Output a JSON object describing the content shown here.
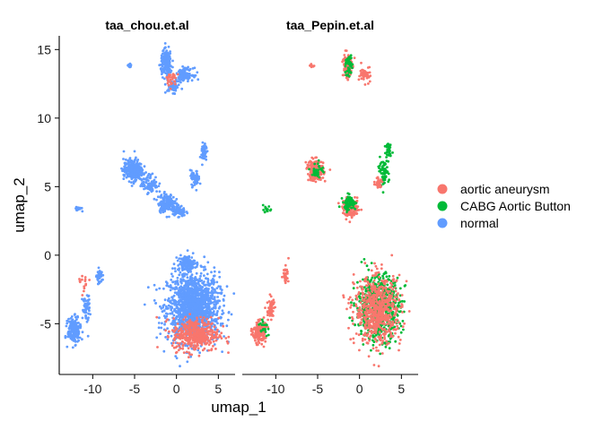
{
  "chart_data": {
    "type": "scatter",
    "xlabel": "umap_1",
    "ylabel": "umap_2",
    "xlim": [
      -14,
      7
    ],
    "ylim": [
      -8.7,
      16
    ],
    "x_ticks": [
      -10,
      -5,
      0,
      5
    ],
    "x_tick_labels": [
      "-10",
      "-5",
      "0",
      "5"
    ],
    "y_ticks": [
      -5,
      0,
      5,
      10,
      15
    ],
    "y_tick_labels": [
      "-5",
      "0",
      "5",
      "10",
      "15"
    ],
    "grid": false,
    "legend_position": "right",
    "legend": [
      {
        "label": "aortic aneurysm",
        "color": "#F8766D"
      },
      {
        "label": "CABG Aortic Button",
        "color": "#00BA38"
      },
      {
        "label": "normal",
        "color": "#619CFF"
      }
    ],
    "facets": [
      {
        "title": "taa_chou.et.al",
        "clusters": [
          {
            "label": "normal",
            "cx": 2.0,
            "cy": -3.8,
            "sx": 2.8,
            "sy": 2.3,
            "n": 1500
          },
          {
            "label": "aortic aneurysm",
            "cx": 2.3,
            "cy": -5.8,
            "sx": 2.5,
            "sy": 1.1,
            "n": 400
          },
          {
            "label": "normal",
            "cx": 1.2,
            "cy": -0.6,
            "sx": 0.9,
            "sy": 0.5,
            "n": 120
          },
          {
            "label": "normal",
            "cx": -5.2,
            "cy": 6.2,
            "sx": 1.0,
            "sy": 0.7,
            "n": 320
          },
          {
            "label": "normal",
            "cx": -3.2,
            "cy": 5.2,
            "sx": 0.9,
            "sy": 0.6,
            "n": 90
          },
          {
            "label": "normal",
            "cx": -1.2,
            "cy": 3.8,
            "sx": 0.9,
            "sy": 0.6,
            "n": 160
          },
          {
            "label": "normal",
            "cx": 0.3,
            "cy": 3.2,
            "sx": 0.7,
            "sy": 0.4,
            "n": 80
          },
          {
            "label": "normal",
            "cx": 2.2,
            "cy": 5.6,
            "sx": 0.5,
            "sy": 0.5,
            "n": 60
          },
          {
            "label": "normal",
            "cx": 3.3,
            "cy": 7.5,
            "sx": 0.3,
            "sy": 0.7,
            "n": 50
          },
          {
            "label": "normal",
            "cx": -1.2,
            "cy": 14.0,
            "sx": 0.6,
            "sy": 0.8,
            "n": 200
          },
          {
            "label": "normal",
            "cx": 1.0,
            "cy": 13.2,
            "sx": 0.9,
            "sy": 0.4,
            "n": 120
          },
          {
            "label": "normal",
            "cx": -0.4,
            "cy": 12.3,
            "sx": 0.7,
            "sy": 0.4,
            "n": 70
          },
          {
            "label": "aortic aneurysm",
            "cx": -0.6,
            "cy": 12.8,
            "sx": 0.8,
            "sy": 0.5,
            "n": 30
          },
          {
            "label": "normal",
            "cx": -5.6,
            "cy": 13.8,
            "sx": 0.15,
            "sy": 0.15,
            "n": 20
          },
          {
            "label": "normal",
            "cx": -11.8,
            "cy": 3.4,
            "sx": 0.4,
            "sy": 0.12,
            "n": 25
          },
          {
            "label": "normal",
            "cx": -12.2,
            "cy": -5.5,
            "sx": 0.7,
            "sy": 0.8,
            "n": 220
          },
          {
            "label": "normal",
            "cx": -10.8,
            "cy": -3.8,
            "sx": 0.4,
            "sy": 0.8,
            "n": 60
          },
          {
            "label": "normal",
            "cx": -9.2,
            "cy": -1.6,
            "sx": 0.3,
            "sy": 0.5,
            "n": 40
          },
          {
            "label": "aortic aneurysm",
            "cx": -11.0,
            "cy": -2.2,
            "sx": 0.5,
            "sy": 0.6,
            "n": 15
          }
        ]
      },
      {
        "title": "taa_Pepin.et.al",
        "clusters": [
          {
            "label": "CABG Aortic Button",
            "cx": 2.2,
            "cy": -3.8,
            "sx": 2.4,
            "sy": 2.1,
            "n": 650
          },
          {
            "label": "aortic aneurysm",
            "cx": 2.2,
            "cy": -4.0,
            "sx": 2.5,
            "sy": 2.2,
            "n": 650
          },
          {
            "label": "aortic aneurysm",
            "cx": -5.3,
            "cy": 6.2,
            "sx": 0.9,
            "sy": 0.7,
            "n": 180
          },
          {
            "label": "CABG Aortic Button",
            "cx": -5.0,
            "cy": 6.2,
            "sx": 0.6,
            "sy": 0.5,
            "n": 40
          },
          {
            "label": "aortic aneurysm",
            "cx": -1.0,
            "cy": 3.4,
            "sx": 0.9,
            "sy": 0.6,
            "n": 130
          },
          {
            "label": "CABG Aortic Button",
            "cx": -1.2,
            "cy": 3.8,
            "sx": 0.7,
            "sy": 0.5,
            "n": 70
          },
          {
            "label": "CABG Aortic Button",
            "cx": 2.8,
            "cy": 6.0,
            "sx": 0.6,
            "sy": 0.9,
            "n": 70
          },
          {
            "label": "aortic aneurysm",
            "cx": 2.3,
            "cy": 5.3,
            "sx": 0.4,
            "sy": 0.4,
            "n": 30
          },
          {
            "label": "CABG Aortic Button",
            "cx": 3.5,
            "cy": 7.8,
            "sx": 0.3,
            "sy": 0.5,
            "n": 30
          },
          {
            "label": "aortic aneurysm",
            "cx": -1.5,
            "cy": 13.8,
            "sx": 0.5,
            "sy": 0.9,
            "n": 110
          },
          {
            "label": "CABG Aortic Button",
            "cx": -1.3,
            "cy": 13.8,
            "sx": 0.4,
            "sy": 0.8,
            "n": 50
          },
          {
            "label": "aortic aneurysm",
            "cx": 0.8,
            "cy": 13.2,
            "sx": 0.7,
            "sy": 0.5,
            "n": 50
          },
          {
            "label": "aortic aneurysm",
            "cx": -5.7,
            "cy": 13.8,
            "sx": 0.2,
            "sy": 0.1,
            "n": 10
          },
          {
            "label": "CABG Aortic Button",
            "cx": -11.0,
            "cy": 3.3,
            "sx": 0.4,
            "sy": 0.2,
            "n": 15
          },
          {
            "label": "aortic aneurysm",
            "cx": -12.0,
            "cy": -5.6,
            "sx": 0.7,
            "sy": 0.7,
            "n": 170
          },
          {
            "label": "aortic aneurysm",
            "cx": -10.6,
            "cy": -4.0,
            "sx": 0.4,
            "sy": 0.8,
            "n": 60
          },
          {
            "label": "aortic aneurysm",
            "cx": -8.8,
            "cy": -1.4,
            "sx": 0.3,
            "sy": 0.5,
            "n": 35
          },
          {
            "label": "CABG Aortic Button",
            "cx": -11.5,
            "cy": -5.2,
            "sx": 0.5,
            "sy": 0.5,
            "n": 20
          }
        ]
      }
    ]
  }
}
